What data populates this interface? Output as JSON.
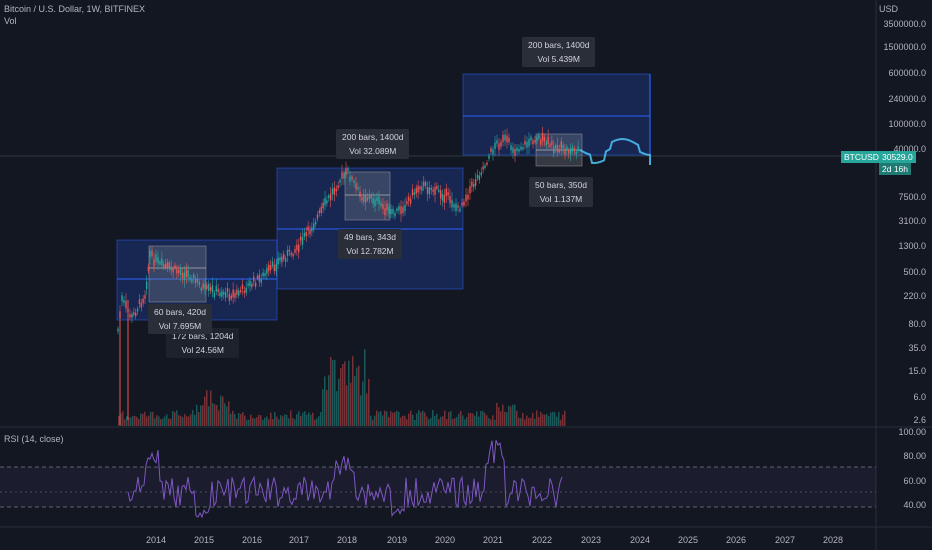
{
  "header": {
    "symbol_title": "Bitcoin / U.S. Dollar, 1W, BITFINEX",
    "volume_label": "Vol",
    "currency": "USD"
  },
  "price_scale": {
    "ticks": [
      "3500000.0",
      "1500000.0",
      "600000.0",
      "240000.0",
      "100000.0",
      "40000.0",
      "7500.0",
      "3100.0",
      "1300.0",
      "500.0",
      "220.0",
      "80.0",
      "35.0",
      "15.0",
      "6.0",
      "2.6"
    ]
  },
  "rsi_pane": {
    "label": "RSI (14, close)",
    "ticks": [
      "100.00",
      "80.00",
      "60.00",
      "40.00"
    ]
  },
  "time_axis": {
    "years": [
      "2014",
      "2015",
      "2016",
      "2017",
      "2018",
      "2019",
      "2020",
      "2021",
      "2022",
      "2023",
      "2024",
      "2025",
      "2026",
      "2027",
      "2028"
    ]
  },
  "symbol_tag": {
    "symbol": "BTCUSD",
    "price": "30529.0",
    "countdown": "2d 16h"
  },
  "measurements": [
    {
      "bars": "200 bars, 1400d",
      "vol": "Vol 5.439M"
    },
    {
      "bars": "200 bars, 1400d",
      "vol": "Vol 32.089M"
    },
    {
      "bars": "50 bars, 350d",
      "vol": "Vol 1.137M"
    },
    {
      "bars": "49 bars, 343d",
      "vol": "Vol 12.782M"
    },
    {
      "bars": "60 bars, 420d",
      "vol": "Vol 7.695M"
    },
    {
      "bars": "172 bars, 1204d",
      "vol": "Vol 24.56M"
    }
  ],
  "colors": {
    "background": "#131722",
    "up": "#26a69a",
    "down": "#ef5350",
    "projection": "#4fc3f7",
    "rsi_line": "#7e57c2",
    "range_box": "#2962ff",
    "tag": "#26a69a"
  }
}
